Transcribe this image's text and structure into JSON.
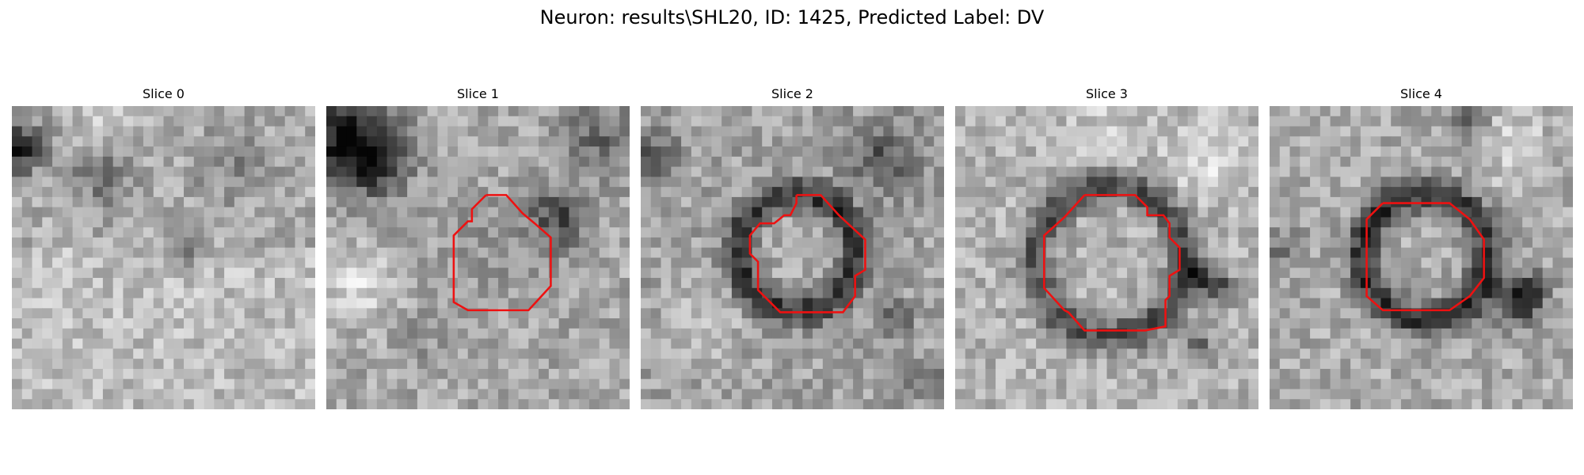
{
  "figure": {
    "title": "Neuron: results\\SHL20, ID: 1425, Predicted Label: DV"
  },
  "panels": [
    {
      "title": "Slice 0",
      "image": "grayscale microscopy slice, no ROI contour",
      "has_contour": false,
      "contour_color": "#ee1111"
    },
    {
      "title": "Slice 1",
      "image": "grayscale microscopy slice with dark upper-left region",
      "has_contour": true,
      "contour_color": "#ee1111"
    },
    {
      "title": "Slice 2",
      "image": "grayscale microscopy slice with dark ring around cell",
      "has_contour": true,
      "contour_color": "#ee1111"
    },
    {
      "title": "Slice 3",
      "image": "grayscale microscopy slice with dark ring around cell",
      "has_contour": true,
      "contour_color": "#ee1111"
    },
    {
      "title": "Slice 4",
      "image": "grayscale microscopy slice with dark ring around cell",
      "has_contour": true,
      "contour_color": "#ee1111"
    }
  ]
}
